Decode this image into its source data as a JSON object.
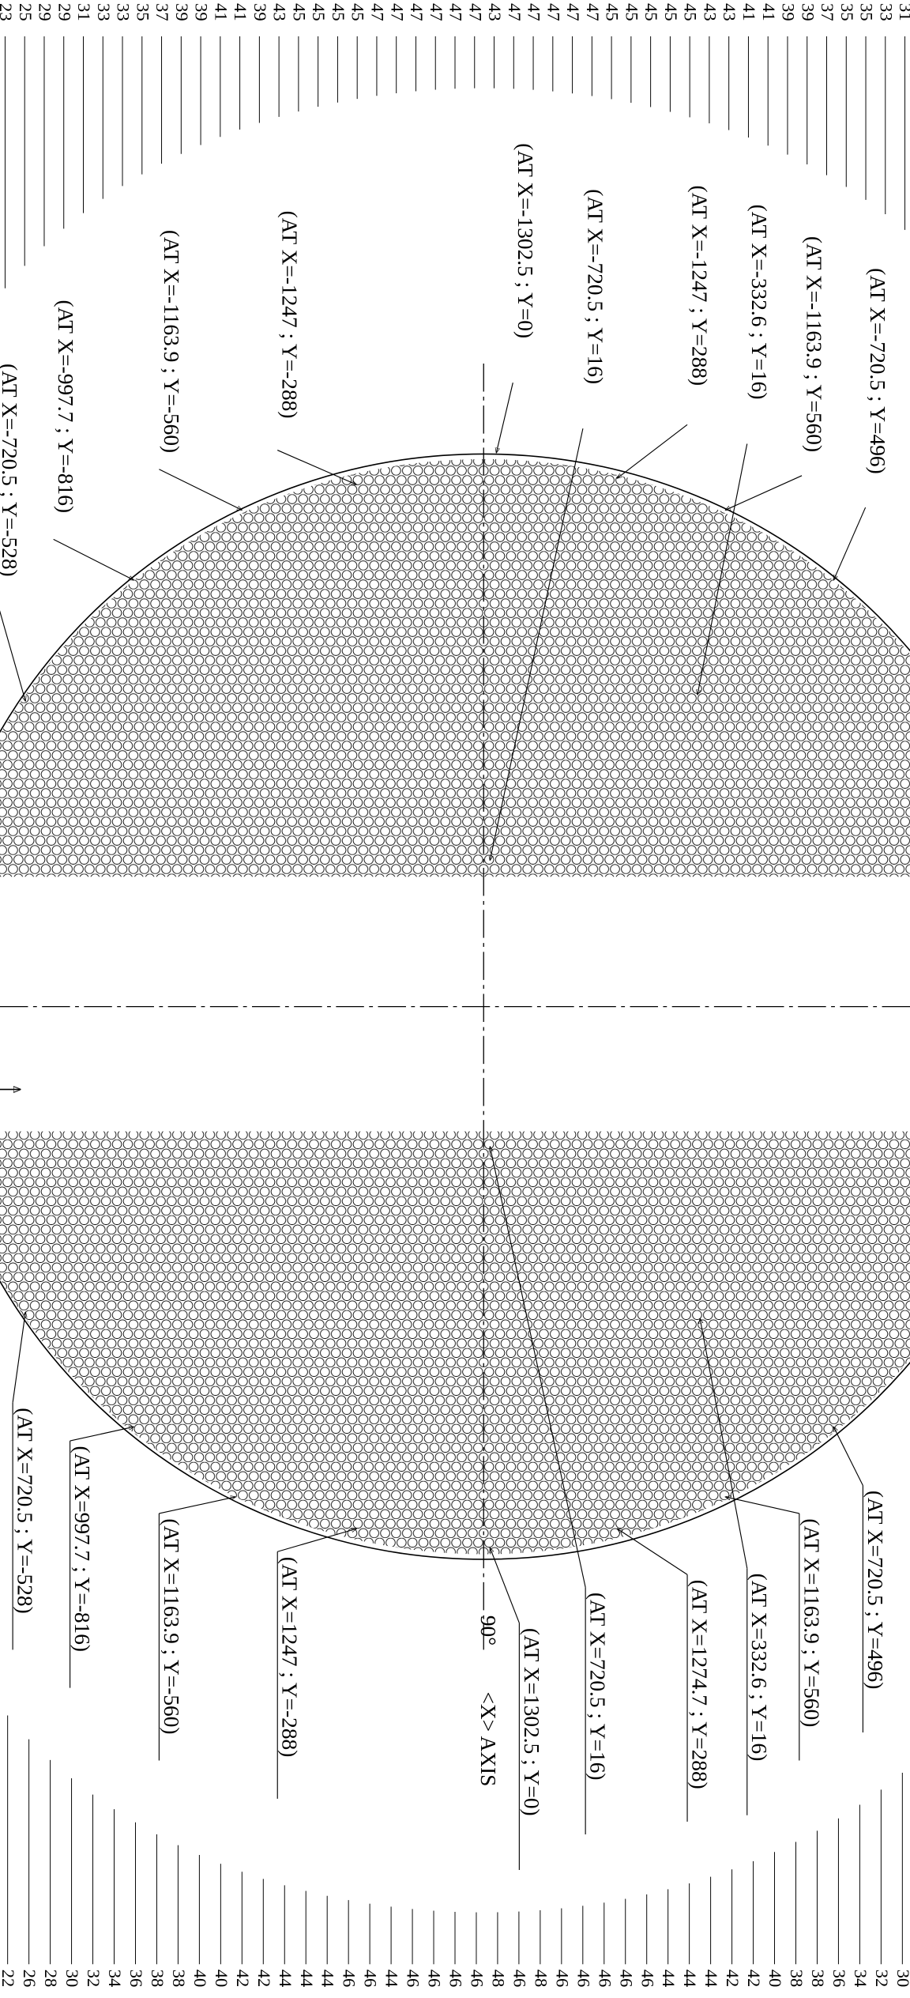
{
  "top_row_counts": [
    23,
    25,
    29,
    29,
    31,
    33,
    33,
    35,
    37,
    39,
    39,
    41,
    41,
    39,
    43,
    45,
    45,
    45,
    45,
    47,
    47,
    47,
    47,
    47,
    47,
    43,
    47,
    47,
    47,
    47,
    47,
    45,
    45,
    45,
    45,
    45,
    43,
    43,
    41,
    41,
    39,
    39,
    37,
    35,
    35,
    33,
    31
  ],
  "bottom_row_counts": [
    22,
    26,
    28,
    30,
    32,
    34,
    36,
    38,
    38,
    40,
    40,
    42,
    42,
    44,
    44,
    44,
    46,
    46,
    44,
    46,
    46,
    46,
    46,
    48,
    46,
    48,
    46,
    46,
    46,
    46,
    46,
    44,
    44,
    44,
    42,
    42,
    40,
    38,
    38,
    36,
    34,
    32,
    30
  ],
  "annotations_top": [
    "(AT X=-720.5 ; Y=496)",
    "(AT X=-1163.9 ; Y=560)",
    "(AT X=-332.6 ; Y=16)",
    "(AT X=-1247 ; Y=288)",
    "(AT X=-720.5 ; Y=16)",
    "(AT X=-1302.5 ; Y=0)",
    "(AT X=-1247 ; Y=-288)",
    "(AT X=-1163.9 ; Y=-560)",
    "(AT X=-997.7 ; Y=-816)",
    "(AT X=-720.5 ; Y=-528)"
  ],
  "annotations_bottom": [
    "(AT X=720.5 ; Y=496)",
    "(AT X=1163.9 ; Y=560)",
    "(AT X=332.6 ; Y=16)",
    "(AT X=1274.7 ; Y=288)",
    "(AT X=720.5 ; Y=16)",
    "(AT X=1302.5 ; Y=0)",
    "(AT X=1247 ; Y=-288)",
    "(AT X=1163.9 ; Y=-560)",
    "(AT X=997.7 ; Y=-816)",
    "(AT X=720.5 ; Y=-528)"
  ],
  "angle_label": "90°",
  "axis_label": "<X> AXIS"
}
